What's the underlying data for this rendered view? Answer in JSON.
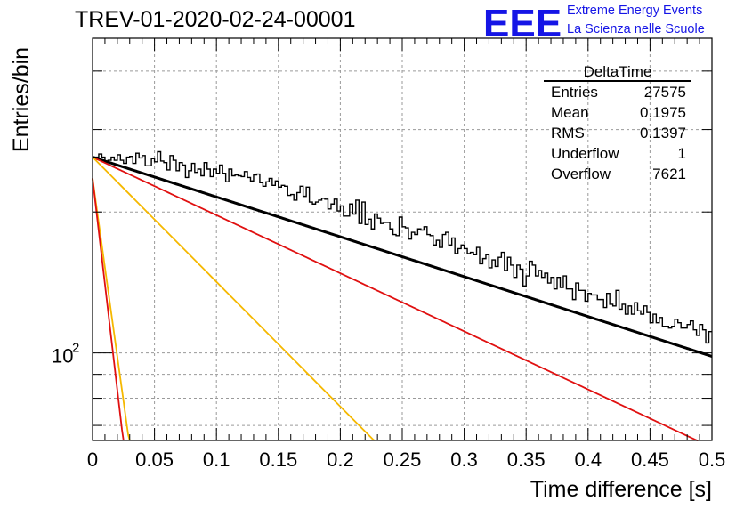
{
  "title": "TREV-01-2020-02-24-00001",
  "logo": {
    "mark": "EEE",
    "line1": "Extreme Energy Events",
    "line2": "La Scienza nelle Scuole",
    "color": "#1515e6"
  },
  "stats_box": {
    "name": "DeltaTime",
    "rows": [
      {
        "label": "Entries",
        "value": "27575"
      },
      {
        "label": "Mean",
        "value": "0.1975"
      },
      {
        "label": "RMS",
        "value": "0.1397"
      },
      {
        "label": "Underflow",
        "value": "1"
      },
      {
        "label": "Overflow",
        "value": "7621"
      }
    ]
  },
  "chart_data": {
    "type": "histogram",
    "xlabel": "Time difference [s]",
    "ylabel": "Entries/bin",
    "xlim": [
      0,
      0.5
    ],
    "ylim": [
      65,
      470
    ],
    "yscale": "log",
    "grid": true,
    "xticks": [
      "0",
      "0.05",
      "0.1",
      "0.15",
      "0.2",
      "0.25",
      "0.3",
      "0.35",
      "0.4",
      "0.45",
      "0.5"
    ],
    "yticks": [
      {
        "value": 100,
        "label": "10",
        "exponent": "2"
      }
    ],
    "bin_width": 0.0025,
    "histogram": {
      "color": "#000000",
      "values": [
        262,
        262,
        266,
        262,
        257,
        258,
        262,
        258,
        265,
        258,
        254,
        262,
        263,
        254,
        267,
        261,
        264,
        251,
        251,
        260,
        256,
        269,
        257,
        255,
        246,
        264,
        258,
        245,
        255,
        252,
        237,
        245,
        254,
        243,
        247,
        239,
        255,
        247,
        238,
        247,
        242,
        252,
        242,
        232,
        247,
        239,
        240,
        239,
        238,
        244,
        237,
        233,
        240,
        241,
        231,
        227,
        232,
        236,
        228,
        233,
        226,
        228,
        227,
        217,
        218,
        212,
        220,
        227,
        216,
        226,
        210,
        208,
        210,
        212,
        214,
        213,
        203,
        208,
        213,
        201,
        206,
        196,
        196,
        208,
        198,
        212,
        189,
        210,
        188,
        193,
        184,
        198,
        194,
        189,
        190,
        190,
        184,
        179,
        178,
        195,
        186,
        185,
        175,
        181,
        179,
        184,
        183,
        186,
        179,
        178,
        170,
        174,
        168,
        179,
        181,
        170,
        176,
        163,
        167,
        170,
        167,
        163,
        164,
        162,
        168,
        155,
        159,
        162,
        152,
        158,
        153,
        160,
        164,
        150,
        160,
        154,
        145,
        154,
        151,
        139,
        146,
        157,
        154,
        146,
        150,
        145,
        148,
        141,
        145,
        137,
        145,
        138,
        146,
        137,
        137,
        130,
        141,
        136,
        136,
        129,
        134,
        133,
        133,
        130,
        130,
        125,
        134,
        127,
        126,
        136,
        124,
        127,
        121,
        126,
        121,
        128,
        123,
        121,
        126,
        122,
        116,
        121,
        116,
        119,
        114,
        114,
        113,
        114,
        118,
        116,
        113,
        113,
        115,
        117,
        112,
        109,
        115,
        112,
        105,
        111
      ]
    },
    "fits": [
      {
        "name": "total",
        "color": "#000000",
        "a": 262,
        "tau": 0.51
      },
      {
        "name": "slow",
        "color": "#e01010",
        "a": 262,
        "tau": 0.35
      },
      {
        "name": "medium",
        "color": "#f5b800",
        "a": 262,
        "tau": 0.163
      },
      {
        "name": "fast-orange",
        "color": "#f5b800",
        "a": 236,
        "tau": 0.0228
      },
      {
        "name": "fast-red",
        "color": "#e01010",
        "a": 236,
        "tau": 0.0192
      }
    ]
  }
}
